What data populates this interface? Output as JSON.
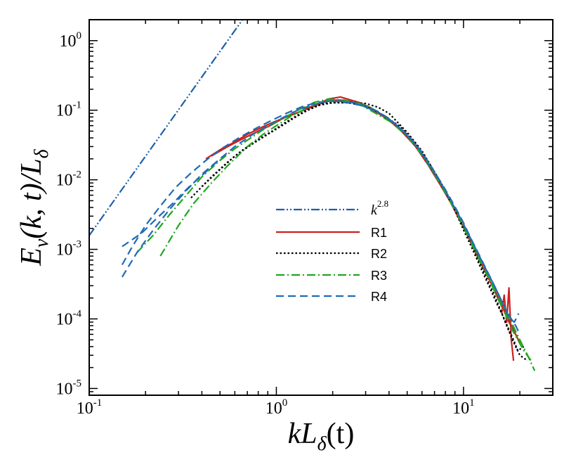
{
  "chart_data": {
    "type": "line",
    "title": "",
    "x_scale": "log",
    "y_scale": "log",
    "xlim": [
      0.1,
      30
    ],
    "ylim": [
      8e-06,
      2
    ],
    "xlabel": {
      "main": "kL",
      "sub": "δ",
      "tail": "(t)"
    },
    "ylabel": {
      "main": "E",
      "sub": "v",
      "mid": "(k, t)/L",
      "sub2": "δ"
    },
    "x_ticks": [
      {
        "value": 0.1,
        "base": "10",
        "exp": "-1"
      },
      {
        "value": 1,
        "base": "10",
        "exp": "0"
      },
      {
        "value": 10,
        "base": "10",
        "exp": "1"
      }
    ],
    "y_ticks": [
      {
        "value": 1e-05,
        "base": "10",
        "exp": "-5"
      },
      {
        "value": 0.0001,
        "base": "10",
        "exp": "-4"
      },
      {
        "value": 0.001,
        "base": "10",
        "exp": "-3"
      },
      {
        "value": 0.01,
        "base": "10",
        "exp": "-2"
      },
      {
        "value": 0.1,
        "base": "10",
        "exp": "-1"
      },
      {
        "value": 1,
        "base": "10",
        "exp": "0"
      }
    ],
    "grid": false,
    "legend_position": "center",
    "reference_line": {
      "name": "k",
      "exponent_label": "2.8",
      "slope": 2.8,
      "x": [
        0.1,
        0.84
      ],
      "y": [
        0.00158,
        5.0
      ],
      "color": "#1f5fa8",
      "dash": "dash-dot-dot"
    },
    "series": [
      {
        "name": "R1",
        "color": "#cc1f1f",
        "dash": "solid",
        "curves": [
          {
            "x": [
              0.42,
              0.5,
              0.6,
              0.7,
              0.85,
              1.0,
              1.2,
              1.4,
              1.6,
              1.8,
              2.0,
              2.3,
              2.6,
              3.0,
              3.5,
              4.0,
              5.0,
              6.0,
              7.0,
              8.0,
              9.0,
              10.0,
              11.0,
              12.0,
              13.0,
              14.0,
              15.0,
              16.0,
              17.0,
              18.0,
              19.0,
              20.0
            ],
            "y": [
              0.02,
              0.027,
              0.035,
              0.045,
              0.058,
              0.07,
              0.085,
              0.1,
              0.115,
              0.13,
              0.14,
              0.14,
              0.13,
              0.115,
              0.09,
              0.072,
              0.042,
              0.023,
              0.012,
              0.0065,
              0.0037,
              0.0021,
              0.0013,
              0.0008,
              0.0005,
              0.00033,
              0.00023,
              0.00016,
              0.000115,
              8e-05,
              6e-05,
              4.5e-05
            ]
          },
          {
            "x": [
              0.45,
              0.55,
              0.65,
              0.8,
              0.95,
              1.1,
              1.3,
              1.5,
              1.7,
              1.9,
              2.2,
              2.5,
              2.8,
              3.2,
              3.7,
              4.5,
              5.5,
              6.5,
              7.5,
              8.5,
              9.5,
              10.5,
              11.5,
              12.5,
              13.5,
              14.5,
              15.5,
              16.5,
              17.5,
              18.5
            ],
            "y": [
              0.022,
              0.03,
              0.038,
              0.05,
              0.062,
              0.078,
              0.092,
              0.11,
              0.125,
              0.145,
              0.155,
              0.14,
              0.128,
              0.108,
              0.085,
              0.055,
              0.031,
              0.016,
              0.0085,
              0.0048,
              0.0027,
              0.0016,
              0.00095,
              0.0006,
              0.0004,
              0.00027,
              0.00018,
              0.00013,
              9e-05,
              7e-05
            ]
          },
          {
            "x": [
              16.0,
              16.5,
              17.0,
              17.5,
              18.0,
              18.5
            ],
            "y": [
              0.00012,
              0.00022,
              9e-05,
              0.00028,
              5e-05,
              2.5e-05
            ]
          }
        ]
      },
      {
        "name": "R2",
        "color": "#000000",
        "dash": "dotted",
        "curves": [
          {
            "x": [
              0.35,
              0.45,
              0.55,
              0.65,
              0.8,
              0.95,
              1.1,
              1.3,
              1.5,
              1.8,
              2.1,
              2.5,
              3.0,
              3.5,
              4.0,
              5.0,
              6.0,
              7.0,
              8.0,
              9.0,
              10.0,
              11.0,
              12.0,
              13.0,
              14.0,
              15.0,
              16.0,
              17.0,
              18.0,
              19.0,
              20.0,
              22.0
            ],
            "y": [
              0.0055,
              0.011,
              0.018,
              0.026,
              0.038,
              0.05,
              0.065,
              0.085,
              0.105,
              0.125,
              0.13,
              0.13,
              0.125,
              0.11,
              0.09,
              0.048,
              0.026,
              0.013,
              0.0068,
              0.0036,
              0.0019,
              0.0011,
              0.00065,
              0.0004,
              0.00026,
              0.00017,
              0.00012,
              8e-05,
              5.5e-05,
              4e-05,
              3e-05,
              2.5e-05
            ]
          },
          {
            "x": [
              0.4,
              0.5,
              0.6,
              0.75,
              0.9,
              1.05,
              1.25,
              1.45,
              1.7,
              2.0,
              2.4,
              2.8,
              3.3,
              3.9,
              4.6,
              5.5,
              6.5,
              7.5,
              8.5,
              9.5,
              10.5,
              11.5,
              12.5,
              13.5,
              14.5,
              15.5,
              16.5,
              17.5,
              18.5,
              19.5,
              21.0
            ],
            "y": [
              0.008,
              0.014,
              0.022,
              0.033,
              0.045,
              0.058,
              0.078,
              0.098,
              0.118,
              0.128,
              0.128,
              0.12,
              0.102,
              0.078,
              0.058,
              0.034,
              0.018,
              0.0095,
              0.0052,
              0.0028,
              0.0016,
              0.00092,
              0.00056,
              0.00035,
              0.00023,
              0.00015,
              0.0001,
              7e-05,
              5e-05,
              3.5e-05,
              4e-05
            ]
          }
        ]
      },
      {
        "name": "R3",
        "color": "#1fa81f",
        "dash": "dash-dot",
        "curves": [
          {
            "x": [
              0.18,
              0.22,
              0.27,
              0.33,
              0.4,
              0.5,
              0.6,
              0.75,
              0.9,
              1.1,
              1.3,
              1.6,
              1.9,
              2.2,
              2.6,
              3.0,
              3.5,
              4.0,
              5.0,
              6.0,
              7.0,
              8.0,
              9.0,
              10.0,
              11.0,
              12.0,
              13.0,
              14.0,
              15.0,
              16.0,
              17.0,
              18.0,
              20.0,
              22.0,
              24.0
            ],
            "y": [
              0.0009,
              0.0016,
              0.0032,
              0.006,
              0.011,
              0.019,
              0.028,
              0.042,
              0.058,
              0.078,
              0.1,
              0.13,
              0.145,
              0.14,
              0.132,
              0.118,
              0.095,
              0.075,
              0.044,
              0.024,
              0.0125,
              0.0068,
              0.0038,
              0.0022,
              0.0013,
              0.0008,
              0.00052,
              0.00035,
              0.00024,
              0.00017,
              0.00012,
              9e-05,
              5e-05,
              3e-05,
              1.8e-05
            ]
          },
          {
            "x": [
              0.24,
              0.3,
              0.36,
              0.45,
              0.55,
              0.7,
              0.85,
              1.0,
              1.2,
              1.5,
              1.8,
              2.1,
              2.5,
              2.9,
              3.4,
              4.2,
              5.2,
              6.2,
              7.2,
              8.2,
              9.2,
              10.2,
              11.2,
              12.2,
              13.2,
              14.2,
              15.2,
              16.2,
              17.2,
              18.2,
              19.5,
              21.0,
              23.0
            ],
            "y": [
              0.0008,
              0.0022,
              0.0045,
              0.009,
              0.016,
              0.03,
              0.045,
              0.06,
              0.082,
              0.112,
              0.135,
              0.142,
              0.13,
              0.115,
              0.09,
              0.065,
              0.038,
              0.02,
              0.0105,
              0.0058,
              0.0033,
              0.0019,
              0.0011,
              0.0007,
              0.00046,
              0.0003,
              0.0002,
              0.00014,
              0.0001,
              7e-05,
              5e-05,
              3.5e-05,
              2.5e-05
            ]
          }
        ]
      },
      {
        "name": "R4",
        "color": "#1f6bb5",
        "dash": "dashed",
        "curves": [
          {
            "x": [
              0.15,
              0.18,
              0.22,
              0.27,
              0.33,
              0.4,
              0.5,
              0.6,
              0.75,
              0.9,
              1.1,
              1.3,
              1.6,
              1.9,
              2.2,
              2.6,
              3.0,
              3.5,
              4.0,
              5.0,
              6.0,
              7.0,
              8.0,
              9.0,
              10.0,
              11.0,
              12.0,
              13.0,
              14.0,
              15.0,
              16.0,
              17.0,
              18.0,
              19.0,
              20.0
            ],
            "y": [
              0.0004,
              0.0009,
              0.0019,
              0.0038,
              0.007,
              0.012,
              0.02,
              0.03,
              0.045,
              0.06,
              0.08,
              0.1,
              0.122,
              0.135,
              0.135,
              0.128,
              0.115,
              0.095,
              0.076,
              0.045,
              0.025,
              0.013,
              0.0072,
              0.0041,
              0.0024,
              0.0014,
              0.00088,
              0.00057,
              0.00038,
              0.00026,
              0.00018,
              0.00013,
              0.0001,
              8e-05,
              6e-05
            ]
          },
          {
            "x": [
              0.15,
              0.17,
              0.2,
              0.24,
              0.29,
              0.35,
              0.43,
              0.52,
              0.64,
              0.78,
              0.95,
              1.15,
              1.4,
              1.7,
              2.0,
              2.4,
              2.8,
              3.3,
              3.9,
              4.7,
              5.7,
              6.7,
              7.7,
              8.7,
              9.7,
              10.7,
              11.7,
              12.7,
              13.7,
              14.7,
              15.7,
              16.7,
              17.7,
              18.7,
              19.7
            ],
            "y": [
              0.0006,
              0.0011,
              0.0022,
              0.0042,
              0.0078,
              0.0125,
              0.02,
              0.029,
              0.041,
              0.055,
              0.072,
              0.092,
              0.115,
              0.13,
              0.135,
              0.128,
              0.118,
              0.1,
              0.078,
              0.052,
              0.029,
              0.015,
              0.0082,
              0.0046,
              0.0027,
              0.0016,
              0.00098,
              0.00063,
              0.00042,
              0.00029,
              0.0002,
              0.00014,
              0.0001,
              9e-05,
              0.00012
            ]
          },
          {
            "x": [
              0.15,
              0.19,
              0.23,
              0.28,
              0.34,
              0.42,
              0.5
            ],
            "y": [
              0.0011,
              0.0017,
              0.0028,
              0.0046,
              0.0078,
              0.013,
              0.02
            ]
          }
        ]
      }
    ]
  }
}
